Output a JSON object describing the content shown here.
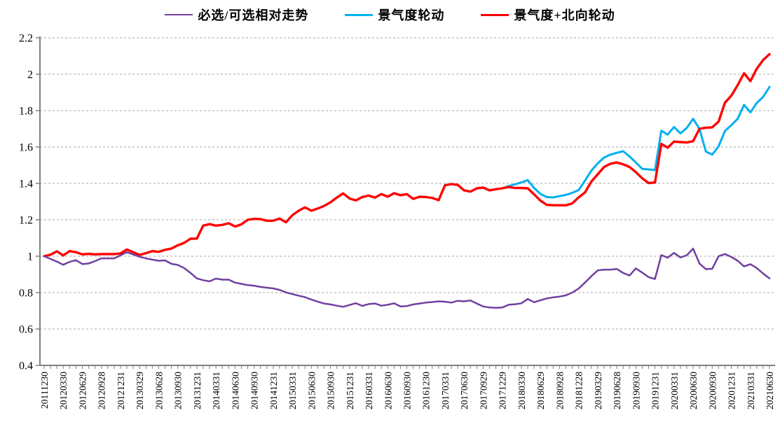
{
  "chart_data": {
    "type": "line",
    "title": "",
    "xlabel": "",
    "ylabel": "",
    "ylim": [
      0.4,
      2.2
    ],
    "y_ticks": [
      0.4,
      0.6,
      0.8,
      1,
      1.2,
      1.4,
      1.6,
      1.8,
      2,
      2.2
    ],
    "grid": "horizontal-dashed",
    "legend_position": "top-center",
    "x_unit": "monthly points; tick label every 3rd point (quarter end)",
    "x_tick_labels": [
      "20111230",
      "20120330",
      "20120629",
      "20120928",
      "20121231",
      "20130329",
      "20130628",
      "20130930",
      "20131231",
      "20140331",
      "20140630",
      "20140930",
      "20141231",
      "20150331",
      "20150630",
      "20150930",
      "20151231",
      "20160331",
      "20160630",
      "20160930",
      "20161230",
      "20170331",
      "20170630",
      "20170929",
      "20171229",
      "20180330",
      "20180629",
      "20180928",
      "20181228",
      "20190329",
      "20190628",
      "20190930",
      "20191231",
      "20200331",
      "20200630",
      "20200930",
      "20201231",
      "20210331",
      "20210630"
    ],
    "series": [
      {
        "name": "景气度轮动",
        "color": "#00B0F0",
        "stroke_width": 3,
        "values": [
          null,
          null,
          null,
          null,
          null,
          null,
          null,
          null,
          null,
          null,
          null,
          null,
          null,
          null,
          null,
          null,
          null,
          null,
          null,
          null,
          null,
          null,
          null,
          null,
          null,
          null,
          null,
          null,
          null,
          null,
          null,
          null,
          null,
          null,
          null,
          null,
          null,
          null,
          null,
          null,
          null,
          null,
          null,
          null,
          null,
          null,
          null,
          null,
          null,
          null,
          null,
          null,
          null,
          null,
          null,
          null,
          null,
          null,
          null,
          null,
          null,
          null,
          null,
          null,
          null,
          null,
          null,
          null,
          null,
          null,
          null,
          null,
          1.373,
          1.385,
          1.395,
          1.405,
          1.418,
          1.375,
          1.342,
          1.325,
          1.323,
          1.33,
          1.337,
          1.348,
          1.363,
          1.415,
          1.47,
          1.51,
          1.542,
          1.558,
          1.568,
          1.577,
          1.548,
          1.515,
          1.48,
          1.477,
          1.473,
          1.69,
          1.668,
          1.71,
          1.675,
          1.705,
          1.755,
          1.7,
          1.575,
          1.558,
          1.604,
          1.688,
          1.72,
          1.755,
          1.832,
          1.79,
          1.842,
          1.875,
          1.93
        ]
      },
      {
        "name": "景气度+北向轮动",
        "color": "#FF0000",
        "stroke_width": 3.4,
        "values": [
          1.0,
          1.008,
          1.027,
          1.004,
          1.028,
          1.022,
          1.01,
          1.013,
          1.01,
          1.012,
          1.012,
          1.012,
          1.015,
          1.037,
          1.022,
          1.007,
          1.017,
          1.028,
          1.024,
          1.035,
          1.042,
          1.06,
          1.073,
          1.096,
          1.097,
          1.168,
          1.176,
          1.168,
          1.172,
          1.181,
          1.163,
          1.175,
          1.2,
          1.205,
          1.204,
          1.195,
          1.195,
          1.207,
          1.186,
          1.225,
          1.25,
          1.268,
          1.25,
          1.262,
          1.276,
          1.296,
          1.322,
          1.345,
          1.317,
          1.307,
          1.325,
          1.333,
          1.322,
          1.341,
          1.327,
          1.346,
          1.335,
          1.341,
          1.315,
          1.327,
          1.325,
          1.32,
          1.308,
          1.39,
          1.396,
          1.392,
          1.362,
          1.355,
          1.373,
          1.377,
          1.362,
          1.368,
          1.373,
          1.38,
          1.375,
          1.375,
          1.373,
          1.34,
          1.305,
          1.282,
          1.28,
          1.28,
          1.28,
          1.29,
          1.323,
          1.35,
          1.41,
          1.45,
          1.49,
          1.508,
          1.515,
          1.505,
          1.49,
          1.462,
          1.428,
          1.402,
          1.405,
          1.617,
          1.596,
          1.63,
          1.627,
          1.625,
          1.632,
          1.7,
          1.706,
          1.708,
          1.74,
          1.843,
          1.882,
          1.94,
          2.005,
          1.962,
          2.03,
          2.078,
          2.11
        ]
      },
      {
        "name": "必选/可选相对走势",
        "color": "#7040A0",
        "stroke_width": 2.5,
        "values": [
          1.0,
          0.985,
          0.97,
          0.953,
          0.969,
          0.978,
          0.957,
          0.96,
          0.973,
          0.988,
          0.988,
          0.988,
          1.005,
          1.022,
          1.01,
          0.997,
          0.988,
          0.981,
          0.975,
          0.977,
          0.958,
          0.952,
          0.935,
          0.908,
          0.878,
          0.868,
          0.862,
          0.877,
          0.871,
          0.871,
          0.855,
          0.848,
          0.841,
          0.838,
          0.831,
          0.827,
          0.823,
          0.815,
          0.801,
          0.792,
          0.783,
          0.775,
          0.762,
          0.75,
          0.74,
          0.735,
          0.728,
          0.722,
          0.732,
          0.742,
          0.727,
          0.737,
          0.74,
          0.728,
          0.733,
          0.741,
          0.724,
          0.726,
          0.735,
          0.74,
          0.745,
          0.748,
          0.752,
          0.75,
          0.745,
          0.755,
          0.752,
          0.757,
          0.74,
          0.724,
          0.718,
          0.716,
          0.718,
          0.733,
          0.736,
          0.741,
          0.765,
          0.747,
          0.758,
          0.768,
          0.774,
          0.778,
          0.785,
          0.8,
          0.822,
          0.855,
          0.89,
          0.922,
          0.926,
          0.926,
          0.93,
          0.908,
          0.894,
          0.933,
          0.91,
          0.885,
          0.875,
          1.006,
          0.992,
          1.018,
          0.993,
          1.005,
          1.042,
          0.96,
          0.929,
          0.931,
          1.0,
          1.012,
          0.996,
          0.975,
          0.944,
          0.956,
          0.935,
          0.905,
          0.878
        ]
      }
    ],
    "legend_order": [
      "必选/可选相对走势",
      "景气度轮动",
      "景气度+北向轮动"
    ]
  },
  "legend": {
    "item1": "必选/可选相对走势",
    "item2": "景气度轮动",
    "item3": "景气度+北向轮动"
  },
  "colors": {
    "purple": "#7040A0",
    "cyan": "#00B0F0",
    "red": "#FF0000",
    "axis": "#808080",
    "gridline": "#A6A6A6"
  }
}
